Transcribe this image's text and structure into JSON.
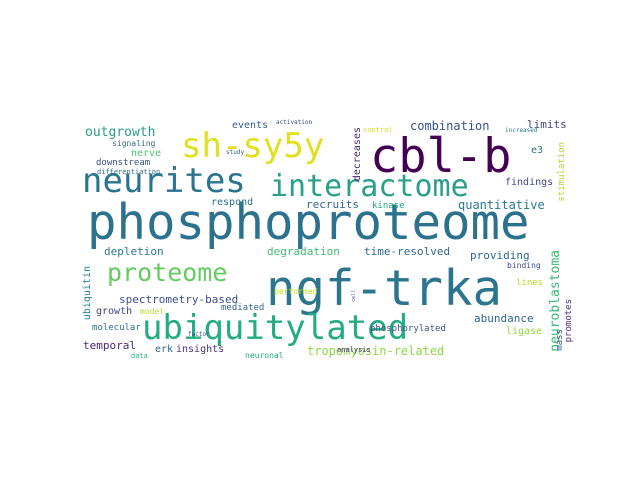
{
  "words": [
    {
      "id": "phosphoproteome",
      "text": "phosphoproteome",
      "color": "#2c728e"
    },
    {
      "id": "ngf-trka",
      "text": "ngf-trka",
      "color": "#2b758e"
    },
    {
      "id": "cbl-b",
      "text": "cbl-b",
      "color": "#440154"
    },
    {
      "id": "interactome",
      "text": "interactome",
      "color": "#2a9f89"
    },
    {
      "id": "ubiquitylated",
      "text": "ubiquitylated",
      "color": "#25ab82"
    },
    {
      "id": "neurites",
      "text": "neurites",
      "color": "#2b748e"
    },
    {
      "id": "sh-sy5y",
      "text": "sh-sy5y",
      "color": "#e0e01e"
    },
    {
      "id": "proteome",
      "text": "proteome",
      "color": "#63cb5f"
    },
    {
      "id": "tropomyosin-related",
      "text": "tropomyosin-related",
      "color": "#90d743"
    },
    {
      "id": "outgrowth",
      "text": "outgrowth",
      "color": "#2a9c89"
    },
    {
      "id": "combination",
      "text": "combination",
      "color": "#3b518b"
    },
    {
      "id": "decreases",
      "text": "decreases",
      "color": "#482475"
    },
    {
      "id": "neuroblastoma",
      "text": "neuroblastoma",
      "color": "#38b977"
    },
    {
      "id": "time-resolved",
      "text": "time-resolved",
      "color": "#31688e"
    },
    {
      "id": "quantitative",
      "text": "quantitative",
      "color": "#2a788e"
    },
    {
      "id": "spectrometry-based",
      "text": "spectrometry-based",
      "color": "#3d4e8a"
    },
    {
      "id": "degradation",
      "text": "degradation",
      "color": "#40bd72"
    },
    {
      "id": "depletion",
      "text": "depletion",
      "color": "#2a788e"
    },
    {
      "id": "providing",
      "text": "providing",
      "color": "#32648e"
    },
    {
      "id": "recruits",
      "text": "recruits",
      "color": "#31678e"
    },
    {
      "id": "abundance",
      "text": "abundance",
      "color": "#32658e"
    },
    {
      "id": "temporal",
      "text": "temporal",
      "color": "#482878"
    },
    {
      "id": "insights",
      "text": "insights",
      "color": "#46337f"
    },
    {
      "id": "ubiquitin",
      "text": "ubiquitin",
      "color": "#277f8e"
    },
    {
      "id": "findings",
      "text": "findings",
      "color": "#3e4989"
    },
    {
      "id": "limits",
      "text": "limits",
      "color": "#3e4a89"
    },
    {
      "id": "ligase",
      "text": "ligase",
      "color": "#95d840"
    },
    {
      "id": "events",
      "text": "events",
      "color": "#365c8d"
    },
    {
      "id": "respond",
      "text": "respond",
      "color": "#2c728e"
    },
    {
      "id": "nerve",
      "text": "nerve",
      "color": "#4ec36b"
    },
    {
      "id": "growth",
      "text": "growth",
      "color": "#3f4788"
    },
    {
      "id": "erk",
      "text": "erk",
      "color": "#31688e"
    },
    {
      "id": "mediated",
      "text": "mediated",
      "color": "#31688e"
    },
    {
      "id": "molecular",
      "text": "molecular",
      "color": "#2d708e"
    },
    {
      "id": "downstream",
      "text": "downstream",
      "color": "#3b518b"
    },
    {
      "id": "performed",
      "text": "performed",
      "color": "#c8e020"
    },
    {
      "id": "phosphorylated",
      "text": "phosphorylated",
      "color": "#3b528b"
    },
    {
      "id": "kinase",
      "text": "kinase",
      "color": "#20a386"
    },
    {
      "id": "lines",
      "text": "lines",
      "color": "#b5de2b"
    },
    {
      "id": "stimulation",
      "text": "stimulation",
      "color": "#a8db34"
    },
    {
      "id": "e3",
      "text": "e3",
      "color": "#2d718e"
    },
    {
      "id": "mass",
      "text": "mass",
      "color": "#3b528b"
    },
    {
      "id": "promotes",
      "text": "promotes",
      "color": "#472d7b"
    },
    {
      "id": "binding",
      "text": "binding",
      "color": "#3e4a89"
    },
    {
      "id": "model",
      "text": "model",
      "color": "#b0dd2f"
    },
    {
      "id": "neuronal",
      "text": "neuronal",
      "color": "#25ab82"
    },
    {
      "id": "signaling",
      "text": "signaling",
      "color": "#31688e"
    },
    {
      "id": "differentiation",
      "text": "differentiation",
      "color": "#2f6c8e"
    },
    {
      "id": "data",
      "text": "data",
      "color": "#29af7f"
    },
    {
      "id": "analysis",
      "text": "analysis",
      "color": "#472d7b"
    },
    {
      "id": "control",
      "text": "control",
      "color": "#d2e21b"
    },
    {
      "id": "activation",
      "text": "activation",
      "color": "#3e4c8a"
    },
    {
      "id": "study",
      "text": "study",
      "color": "#365c8d"
    },
    {
      "id": "increased",
      "text": "increased",
      "color": "#2a788e"
    },
    {
      "id": "factor",
      "text": "factor",
      "color": "#355e8d"
    },
    {
      "id": "cell",
      "text": "cell",
      "color": "#404588"
    }
  ]
}
